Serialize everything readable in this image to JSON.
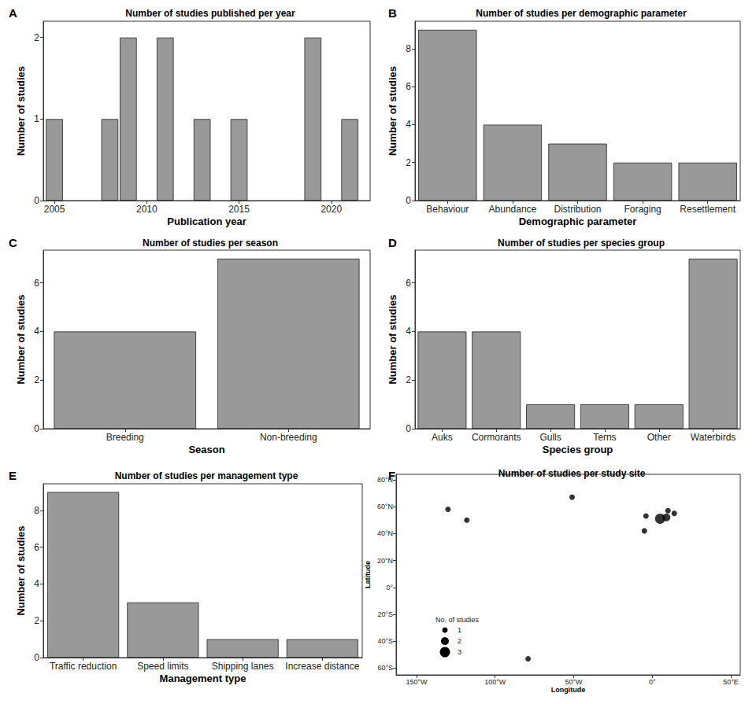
{
  "chart_data": [
    {
      "label": "A",
      "type": "bar",
      "title": "Number of studies published per year",
      "x_label": "Publication year",
      "y_label": "Number of studies",
      "x": [
        2005,
        2008,
        2009,
        2011,
        2013,
        2015,
        2019,
        2021
      ],
      "values": [
        1,
        1,
        2,
        2,
        1,
        1,
        2,
        1
      ],
      "xlim": [
        2004.4,
        2022.1
      ],
      "xticks": [
        2005,
        2010,
        2015,
        2020
      ],
      "ylim": [
        0,
        2.2
      ],
      "yticks": [
        0,
        1,
        2
      ],
      "color": "#999999",
      "grid": false
    },
    {
      "label": "B",
      "type": "bar",
      "title": "Number of studies per demographic parameter",
      "x_label": "Demographic parameter",
      "y_label": "Number of studies",
      "categories": [
        "Behaviour",
        "Abundance",
        "Distribution",
        "Foraging",
        "Resettlement"
      ],
      "values": [
        9,
        4,
        3,
        2,
        2
      ],
      "ylim": [
        0,
        9.45
      ],
      "yticks": [
        0,
        2,
        4,
        6,
        8
      ],
      "color": "#999999",
      "grid": false
    },
    {
      "label": "C",
      "type": "bar",
      "title": "Number of studies per season",
      "x_label": "Season",
      "y_label": "Number of studies",
      "categories": [
        "Breeding",
        "Non-breeding"
      ],
      "values": [
        4,
        7
      ],
      "ylim": [
        0,
        7.35
      ],
      "yticks": [
        0,
        2,
        4,
        6
      ],
      "color": "#999999",
      "grid": false
    },
    {
      "label": "D",
      "type": "bar",
      "title": "Number of studies per species group",
      "x_label": "Species group",
      "y_label": "Number of studies",
      "categories": [
        "Auks",
        "Cormorants",
        "Gulls",
        "Terns",
        "Other",
        "Waterbirds"
      ],
      "values": [
        4,
        4,
        1,
        1,
        1,
        7
      ],
      "ylim": [
        0,
        7.35
      ],
      "yticks": [
        0,
        2,
        4,
        6
      ],
      "color": "#999999",
      "grid": false
    },
    {
      "label": "E",
      "type": "bar",
      "title": "Number of studies per management type",
      "x_label": "Management type",
      "y_label": "Number of studies",
      "categories": [
        "Traffic reduction",
        "Speed limits",
        "Shipping lanes",
        "Increase distance"
      ],
      "values": [
        9,
        3,
        1,
        1
      ],
      "ylim": [
        0,
        9.45
      ],
      "yticks": [
        0,
        2,
        4,
        6,
        8
      ],
      "color": "#999999",
      "grid": false
    },
    {
      "label": "F",
      "type": "scatter",
      "title": "Number of studies per study site",
      "x_label": "Longitude",
      "y_label": "Latitude",
      "x": [
        -130,
        -118,
        -51,
        10,
        -4,
        -5,
        5,
        9,
        14,
        -79
      ],
      "y": [
        58,
        50,
        67,
        57,
        53,
        42,
        51,
        52,
        55,
        -53
      ],
      "sizes": [
        1,
        1,
        1,
        1,
        1,
        1,
        3,
        2,
        1,
        1
      ],
      "size_legend": {
        "title": "No. of studies",
        "values": [
          1,
          2,
          3
        ]
      },
      "xlim": [
        -163,
        56
      ],
      "xticks": [
        {
          "value": -150,
          "label": "150°W"
        },
        {
          "value": -100,
          "label": "100°W"
        },
        {
          "value": -50,
          "label": "50°W"
        },
        {
          "value": 0,
          "label": "0°"
        },
        {
          "value": 50,
          "label": "50°E"
        }
      ],
      "ylim": [
        -65,
        84
      ],
      "yticks": [
        {
          "value": -60,
          "label": "60°S"
        },
        {
          "value": -40,
          "label": "40°S"
        },
        {
          "value": -20,
          "label": "20°S"
        },
        {
          "value": 0,
          "label": "0°"
        },
        {
          "value": 20,
          "label": "20°N"
        },
        {
          "value": 40,
          "label": "40°N"
        },
        {
          "value": 60,
          "label": "60°N"
        },
        {
          "value": 80,
          "label": "80°N"
        }
      ],
      "color": "#000000",
      "marker": "circle",
      "grid": false
    }
  ]
}
